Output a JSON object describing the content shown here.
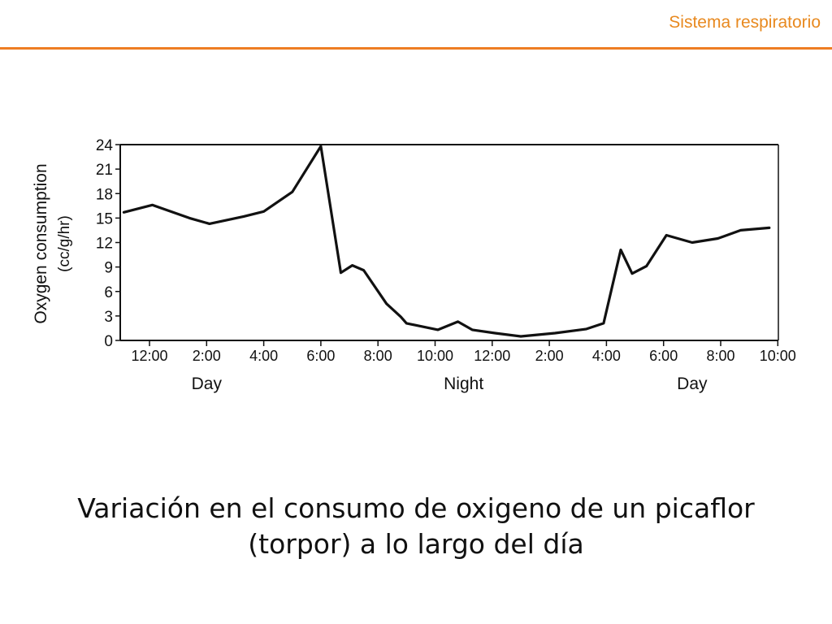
{
  "header": {
    "title": "Sistema respiratorio",
    "accent_color": "#ee7d23"
  },
  "chart_data": {
    "type": "line",
    "ylabel_line1": "Oxygen consumption",
    "ylabel_line2": "(cc/g/hr)",
    "ylim": [
      0,
      24
    ],
    "y_ticks": [
      0,
      3,
      6,
      9,
      12,
      15,
      18,
      21,
      24
    ],
    "x_ticks": [
      "12:00",
      "2:00",
      "4:00",
      "6:00",
      "8:00",
      "10:00",
      "12:00",
      "2:00",
      "4:00",
      "6:00",
      "8:00",
      "10:00"
    ],
    "x_period_labels": [
      "Day",
      "Night",
      "Day"
    ],
    "grid": false,
    "x_unit": "hours since 12:00 (day start)",
    "series": [
      {
        "x": [
          -0.9,
          0.1,
          1.4,
          2.1,
          3.3,
          4.0,
          5.0,
          6.0,
          6.7,
          7.1,
          7.5,
          8.3,
          8.8,
          9.0,
          10.1,
          10.8,
          11.3,
          12.1,
          13.0,
          14.2,
          15.3,
          15.9,
          16.5,
          16.9,
          17.4,
          18.1,
          19.0,
          19.9,
          20.7,
          21.7
        ],
        "y": [
          15.7,
          16.6,
          15.0,
          14.3,
          15.2,
          15.8,
          18.2,
          23.8,
          8.3,
          9.2,
          8.6,
          4.5,
          2.9,
          2.1,
          1.3,
          2.3,
          1.3,
          0.9,
          0.5,
          0.9,
          1.4,
          2.1,
          11.1,
          8.2,
          9.1,
          12.9,
          12.0,
          12.5,
          13.5,
          13.8
        ]
      }
    ]
  },
  "caption": {
    "line1": "Variación en el consumo de oxigeno de un picaflor",
    "line2": "(torpor) a lo largo del día"
  }
}
